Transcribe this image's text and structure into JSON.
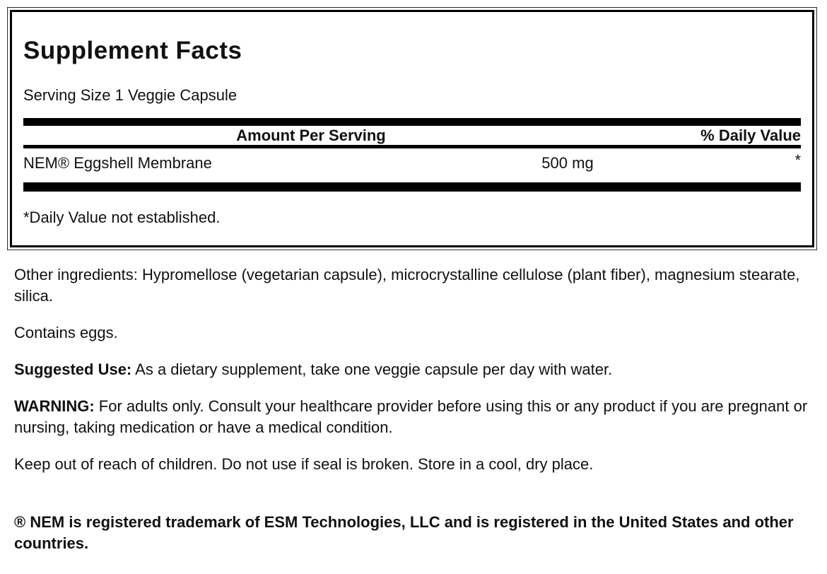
{
  "facts_panel": {
    "title": "Supplement Facts",
    "serving_size": "Serving Size 1 Veggie Capsule",
    "columns": {
      "amount": "Amount Per Serving",
      "daily_value": "% Daily Value"
    },
    "rows": [
      {
        "name": "NEM® Eggshell Membrane",
        "amount": "500 mg",
        "daily_value": "*"
      }
    ],
    "footnote": "*Daily Value not established."
  },
  "details": {
    "other_ingredients": "Other ingredients: Hypromellose (vegetarian capsule), microcrystalline cellulose (plant fiber), magnesium stearate, silica.",
    "allergen_statement": "Contains eggs.",
    "suggested_use_label": "Suggested Use:",
    "suggested_use_text": "As a dietary supplement, take one veggie capsule per day with water.",
    "warning_label": "WARNING:",
    "warning_text": "For adults only. Consult your healthcare provider before using this or any product if you are pregnant or nursing, taking medication or have a medical condition.",
    "storage_instructions": "Keep out of reach of children. Do not use if seal is broken. Store in a cool, dry place.",
    "trademark_notice": "® NEM is registered trademark of ESM Technologies, LLC and is registered in the United States and other countries."
  },
  "colors": {
    "text": "#111111",
    "divider": "#000000",
    "background": "#ffffff"
  }
}
